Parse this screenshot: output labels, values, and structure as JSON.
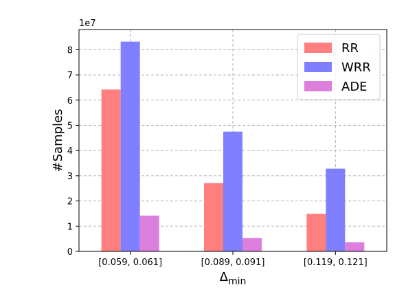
{
  "chart_data": {
    "type": "bar",
    "categories": [
      "[0.059, 0.061]",
      "[0.089, 0.091]",
      "[0.119, 0.121]"
    ],
    "series": [
      {
        "name": "RR",
        "values": [
          64200000,
          27100000,
          14900000
        ],
        "color": "#ff7f7f"
      },
      {
        "name": "WRR",
        "values": [
          83200000,
          47500000,
          32800000
        ],
        "color": "#7f7fff"
      },
      {
        "name": "ADE",
        "values": [
          14200000,
          5300000,
          3600000
        ],
        "color": "#dd7fdd"
      }
    ],
    "ylim": [
      0,
      88000000
    ],
    "yticks": [
      0,
      10000000,
      20000000,
      30000000,
      40000000,
      50000000,
      60000000,
      70000000,
      80000000
    ],
    "ytick_labels": [
      "0",
      "1",
      "2",
      "3",
      "4",
      "5",
      "6",
      "7",
      "8"
    ],
    "y_offset_label": "1e7",
    "ylabel": "#Samples",
    "xlabel_main": "Δ",
    "xlabel_sub": "min",
    "grid": true,
    "legend_position": "top-right"
  }
}
